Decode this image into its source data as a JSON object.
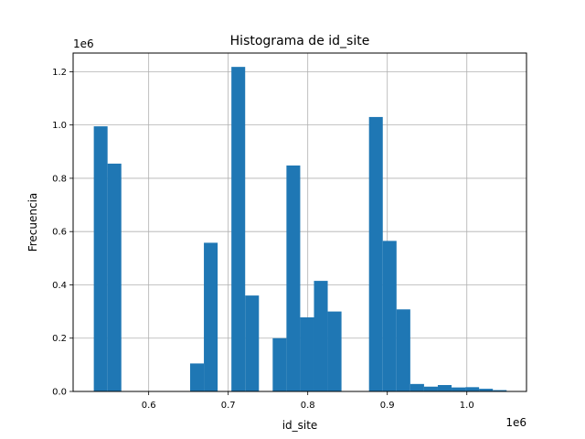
{
  "chart_data": {
    "type": "bar",
    "title": "Histograma de id_site",
    "xlabel": "id_site",
    "ylabel": "Frecuencia",
    "x_offset_label": "1e6",
    "y_offset_label": "1e6",
    "xlim": [
      0.505,
      1.075
    ],
    "ylim": [
      0,
      1.27
    ],
    "x_ticks": [
      0.6,
      0.7,
      0.8,
      0.9,
      1.0
    ],
    "x_tick_labels": [
      "0.6",
      "0.7",
      "0.8",
      "0.9",
      "1.0"
    ],
    "y_ticks": [
      0.0,
      0.2,
      0.4,
      0.6,
      0.8,
      1.0,
      1.2
    ],
    "y_tick_labels": [
      "0.0",
      "0.2",
      "0.4",
      "0.6",
      "0.8",
      "1.0",
      "1.2"
    ],
    "grid": true,
    "bar_color": "#1f77b4",
    "bins": [
      {
        "x0": 0.531,
        "x1": 0.5483,
        "value": 0.995
      },
      {
        "x0": 0.5483,
        "x1": 0.5656,
        "value": 0.855
      },
      {
        "x0": 0.6521,
        "x1": 0.6694,
        "value": 0.105
      },
      {
        "x0": 0.6694,
        "x1": 0.6867,
        "value": 0.558
      },
      {
        "x0": 0.704,
        "x1": 0.7213,
        "value": 1.218
      },
      {
        "x0": 0.7213,
        "x1": 0.7386,
        "value": 0.36
      },
      {
        "x0": 0.7559,
        "x1": 0.7732,
        "value": 0.2
      },
      {
        "x0": 0.7732,
        "x1": 0.7905,
        "value": 0.848
      },
      {
        "x0": 0.7905,
        "x1": 0.8078,
        "value": 0.278
      },
      {
        "x0": 0.8078,
        "x1": 0.8251,
        "value": 0.415
      },
      {
        "x0": 0.8251,
        "x1": 0.8424,
        "value": 0.3
      },
      {
        "x0": 0.877,
        "x1": 0.8943,
        "value": 1.03
      },
      {
        "x0": 0.8943,
        "x1": 0.9116,
        "value": 0.565
      },
      {
        "x0": 0.9116,
        "x1": 0.9289,
        "value": 0.308
      },
      {
        "x0": 0.9289,
        "x1": 0.9462,
        "value": 0.028
      },
      {
        "x0": 0.9462,
        "x1": 0.9635,
        "value": 0.018
      },
      {
        "x0": 0.9635,
        "x1": 0.9808,
        "value": 0.024
      },
      {
        "x0": 0.9808,
        "x1": 0.9981,
        "value": 0.015
      },
      {
        "x0": 0.9981,
        "x1": 1.0154,
        "value": 0.016
      },
      {
        "x0": 1.0154,
        "x1": 1.0327,
        "value": 0.01
      },
      {
        "x0": 1.0327,
        "x1": 1.05,
        "value": 0.005
      }
    ]
  }
}
